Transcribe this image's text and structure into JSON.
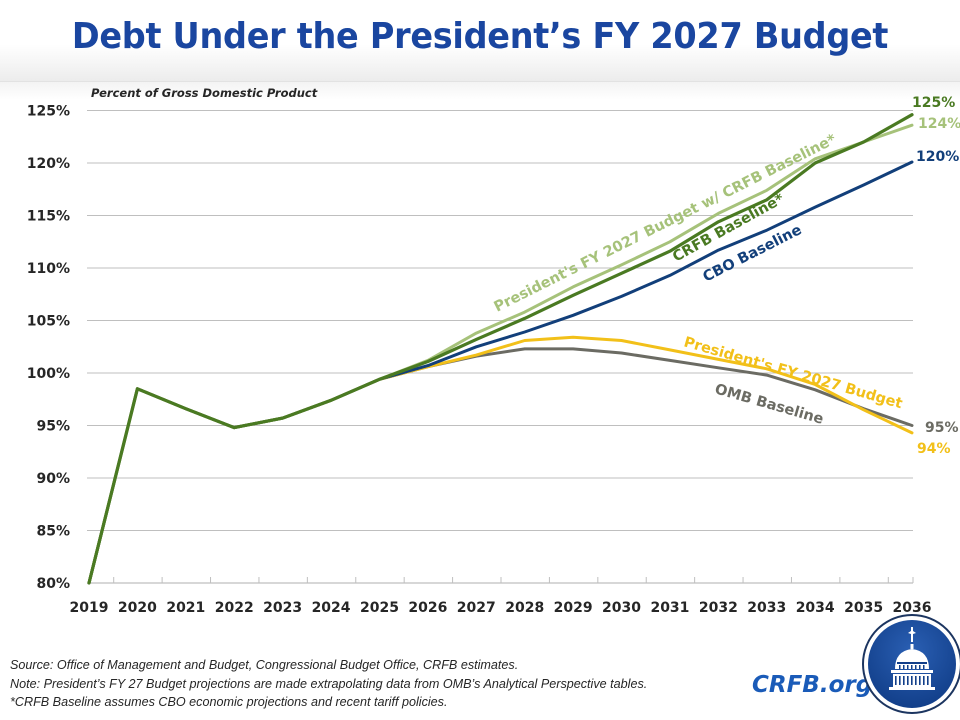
{
  "header": {
    "title": "Debt Under the President’s FY 2027 Budget"
  },
  "colors": {
    "title": "#1a46a0",
    "crfb_baseline": "#4a7a22",
    "presidents_budget_crfb": "#a6c27a",
    "cbo_baseline": "#123f7a",
    "presidents_budget": "#f2c019",
    "omb_baseline": "#6b6b63",
    "gridline": "#bfbfbf",
    "link": "#1a5bb8"
  },
  "chart_data": {
    "type": "line",
    "title": "Debt Under the President’s FY 2027 Budget",
    "ylabel": "Percent of Gross Domestic Product",
    "xlabel": "",
    "x": [
      2019,
      2020,
      2021,
      2022,
      2023,
      2024,
      2025,
      2026,
      2027,
      2028,
      2029,
      2030,
      2031,
      2032,
      2033,
      2034,
      2035,
      2036
    ],
    "x_tick_labels": [
      "2019",
      "2020",
      "2021",
      "2022",
      "2023",
      "2024",
      "2025",
      "2026",
      "2027",
      "2028",
      "2029",
      "2030",
      "2031",
      "2032",
      "2033",
      "2034",
      "2035",
      "2036"
    ],
    "ylim": [
      80,
      125
    ],
    "y_ticks": [
      80,
      85,
      90,
      95,
      100,
      105,
      110,
      115,
      120,
      125
    ],
    "y_tick_labels": [
      "80%",
      "85%",
      "90%",
      "95%",
      "100%",
      "105%",
      "110%",
      "115%",
      "120%",
      "125%"
    ],
    "grid": "horizontal",
    "legend": "inline labels",
    "series": [
      {
        "key": "omb_baseline",
        "name": "OMB Baseline",
        "end_label": "95%",
        "values": [
          80.0,
          98.5,
          96.6,
          94.8,
          95.7,
          97.4,
          99.4,
          100.6,
          101.6,
          102.3,
          102.3,
          101.9,
          101.2,
          100.5,
          99.8,
          98.4,
          96.6,
          95.0
        ]
      },
      {
        "key": "presidents_budget",
        "name": "President's FY 2027 Budget",
        "end_label": "94%",
        "values": [
          80.0,
          98.5,
          96.6,
          94.8,
          95.7,
          97.4,
          99.4,
          100.6,
          101.7,
          103.1,
          103.4,
          103.1,
          102.2,
          101.3,
          100.4,
          98.9,
          96.5,
          94.3
        ]
      },
      {
        "key": "cbo_baseline",
        "name": "CBO Baseline",
        "end_label": "120%",
        "values": [
          80.0,
          98.5,
          96.6,
          94.8,
          95.7,
          97.4,
          99.4,
          100.7,
          102.5,
          103.9,
          105.5,
          107.3,
          109.3,
          111.7,
          113.6,
          115.8,
          117.9,
          120.1
        ]
      },
      {
        "key": "crfb_baseline",
        "name": "CRFB Baseline*",
        "end_label": "125%",
        "values": [
          80.0,
          98.5,
          96.6,
          94.8,
          95.7,
          97.4,
          99.4,
          101.1,
          103.2,
          105.2,
          107.4,
          109.5,
          111.6,
          114.4,
          116.5,
          120.0,
          122.0,
          124.6
        ]
      },
      {
        "key": "presidents_budget_crfb",
        "name": "President's FY 2027 Budget w/ CRFB Baseline*",
        "end_label": "124%",
        "values": [
          80.0,
          98.5,
          96.6,
          94.8,
          95.7,
          97.4,
          99.4,
          101.2,
          103.8,
          105.8,
          108.2,
          110.3,
          112.5,
          115.2,
          117.4,
          120.4,
          122.0,
          123.6
        ]
      }
    ]
  },
  "footer": {
    "source": "Source: Office of Management and Budget, Congressional Budget Office, CRFB estimates.",
    "note": "Note: President’s FY 27 Budget projections are made extrapolating data from OMB’s Analytical Perspective tables.",
    "footnote": "*CRFB Baseline assumes CBO economic projections and recent tariff policies.",
    "site": "CRFB.org"
  },
  "logo": {
    "icon": "capitol-dome-icon"
  }
}
